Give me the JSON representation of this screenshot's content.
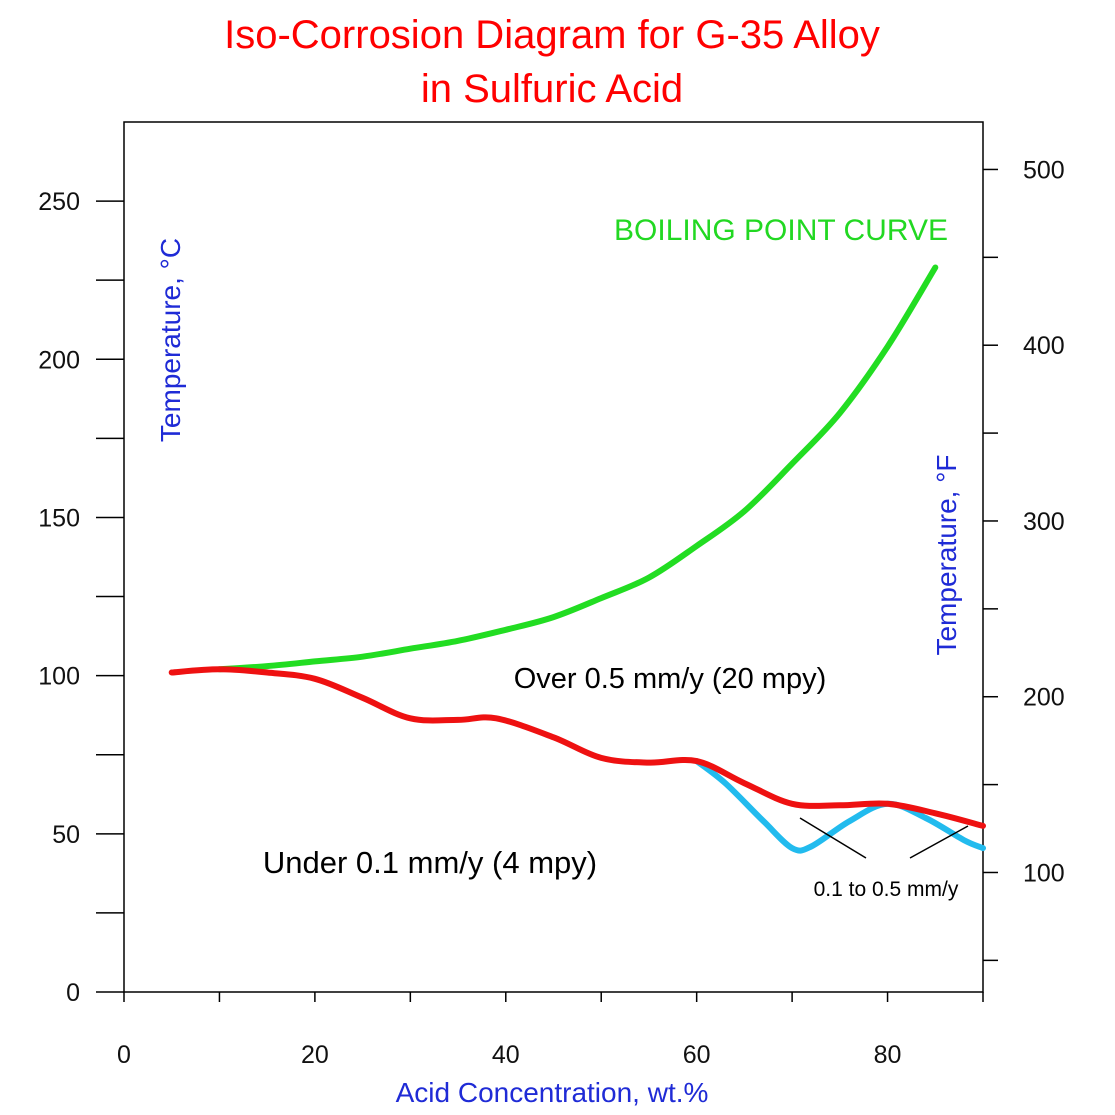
{
  "chart_data": {
    "type": "line",
    "title": [
      "Iso-Corrosion Diagram for G-35 Alloy",
      "in Sulfuric Acid"
    ],
    "xlabel": "Acid Concentration, wt.%",
    "ylabel_left": "Temperature, °C",
    "ylabel_right": "Temperature, °F",
    "xlim": [
      0,
      90
    ],
    "ylim": [
      0,
      275
    ],
    "x_ticks": [
      0,
      20,
      40,
      60,
      80
    ],
    "x_minor_ticks": [
      10,
      30,
      50,
      70,
      90
    ],
    "y_ticks": [
      0,
      50,
      100,
      150,
      200,
      250
    ],
    "y_minor_ticks": [
      25,
      75,
      125,
      175,
      225
    ],
    "y2_ticks": [
      100,
      200,
      300,
      400,
      500
    ],
    "y2_minor_ticks": [
      50,
      150,
      250,
      350,
      450
    ],
    "grid": false,
    "colors": {
      "title": "#ff0000",
      "axis_label": "#1f2bd6",
      "boiling": "#22dd22",
      "iso_0_5": "#ee1111",
      "iso_0_1": "#22bbee"
    },
    "series": [
      {
        "key": "boiling",
        "values": [
          [
            10,
            102
          ],
          [
            15,
            103
          ],
          [
            20,
            104.5
          ],
          [
            25,
            106
          ],
          [
            30,
            108.5
          ],
          [
            35,
            111
          ],
          [
            40,
            114.5
          ],
          [
            45,
            118.5
          ],
          [
            50,
            124.5
          ],
          [
            55,
            131
          ],
          [
            60,
            141
          ],
          [
            65,
            152
          ],
          [
            70,
            167
          ],
          [
            75,
            183
          ],
          [
            80,
            204
          ],
          [
            85,
            229
          ]
        ]
      },
      {
        "key": "iso_0_5",
        "values": [
          [
            5,
            101
          ],
          [
            10,
            102
          ],
          [
            15,
            101
          ],
          [
            20,
            99
          ],
          [
            25,
            93
          ],
          [
            30,
            86.5
          ],
          [
            35,
            86
          ],
          [
            39,
            86.5
          ],
          [
            45,
            80.5
          ],
          [
            50,
            74
          ],
          [
            55,
            72.5
          ],
          [
            60,
            73
          ],
          [
            65,
            66
          ],
          [
            70,
            59.5
          ],
          [
            75,
            59
          ],
          [
            80,
            59.5
          ],
          [
            85,
            56.5
          ],
          [
            90,
            52.5
          ]
        ]
      },
      {
        "key": "iso_0_1",
        "values": [
          [
            60,
            73
          ],
          [
            63,
            66
          ],
          [
            67,
            54
          ],
          [
            70,
            45.5
          ],
          [
            72,
            46
          ],
          [
            76,
            54
          ],
          [
            80,
            59.5
          ],
          [
            84,
            55
          ],
          [
            88,
            48
          ],
          [
            90,
            45.5
          ]
        ]
      }
    ],
    "annotations": {
      "boiling_point": "BOILING POINT CURVE",
      "over": "Over 0.5 mm/y (20 mpy)",
      "under": "Under 0.1 mm/y (4 mpy)",
      "middle": "0.1 to 0.5 mm/y"
    }
  }
}
